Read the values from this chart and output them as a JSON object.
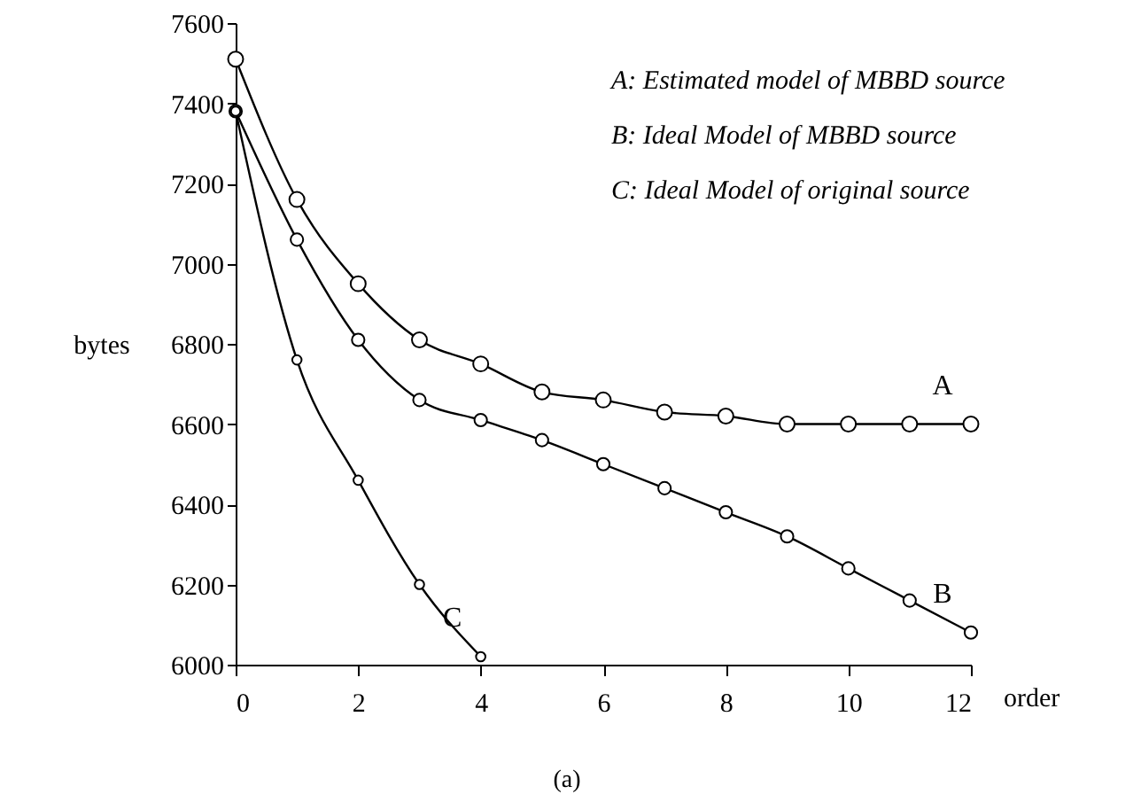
{
  "chart_data": {
    "type": "line",
    "xlabel": "order",
    "ylabel": "bytes",
    "x": [
      0,
      1,
      2,
      3,
      4,
      5,
      6,
      7,
      8,
      9,
      10,
      11,
      12
    ],
    "series": [
      {
        "name": "A",
        "color": "#000000",
        "values": [
          7510,
          7160,
          6950,
          6810,
          6750,
          6680,
          6660,
          6630,
          6620,
          6600,
          6600,
          6600,
          6600
        ]
      },
      {
        "name": "B",
        "color": "#000000",
        "values": [
          7380,
          7060,
          6810,
          6660,
          6610,
          6560,
          6500,
          6440,
          6380,
          6320,
          6240,
          6160,
          6080
        ]
      },
      {
        "name": "C",
        "color": "#000000",
        "values": [
          7380,
          6760,
          6460,
          6200,
          6020,
          null,
          null,
          null,
          null,
          null,
          null,
          null,
          null
        ]
      }
    ],
    "xlim": [
      0,
      12
    ],
    "xticks": [
      0,
      2,
      4,
      6,
      8,
      10,
      12
    ],
    "ylim": [
      6000,
      7600
    ],
    "yticks": [
      6000,
      6200,
      6400,
      6600,
      6800,
      7000,
      7200,
      7400,
      7600
    ],
    "grid": false,
    "marker": "circle",
    "line_style": "solid",
    "annotations": [
      "A: Estimated model of MBBD source",
      "B: Ideal Model of MBBD source",
      "C: Ideal Model of original source",
      "(a)"
    ]
  }
}
